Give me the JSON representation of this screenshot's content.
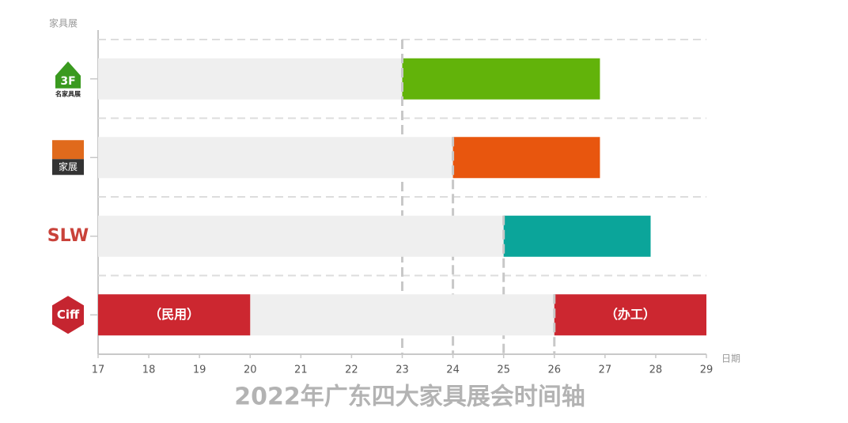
{
  "chart_data": {
    "type": "range-bar",
    "title": "2022年广东四大家具展会时间轴",
    "y_title": "家具展",
    "x_title": "日期",
    "xlim": [
      17,
      29
    ],
    "xticks": [
      17,
      18,
      19,
      20,
      21,
      22,
      23,
      24,
      25,
      26,
      27,
      28,
      29
    ],
    "grid": true,
    "track_color": "#efefef",
    "rows": [
      {
        "logo": {
          "text": "3F",
          "sub": "名家具展",
          "color": "#3a9a1f"
        },
        "segments": [
          {
            "start": 23,
            "end": 26.9,
            "color": "#62b30a"
          }
        ]
      },
      {
        "logo": {
          "text": "家展",
          "color": "#e06a1c"
        },
        "segments": [
          {
            "start": 24,
            "end": 26.9,
            "color": "#e8560e"
          }
        ]
      },
      {
        "logo": {
          "text": "SLW",
          "color": "#c9423a"
        },
        "segments": [
          {
            "start": 25,
            "end": 27.9,
            "color": "#0ba59a"
          }
        ]
      },
      {
        "logo": {
          "text": "Ciff",
          "color": "#c52530"
        },
        "segments": [
          {
            "start": 17,
            "end": 20,
            "color": "#cc2730",
            "label": "（民用）"
          },
          {
            "start": 26,
            "end": 29,
            "color": "#cc2730",
            "label": "（办工）"
          }
        ]
      }
    ]
  }
}
